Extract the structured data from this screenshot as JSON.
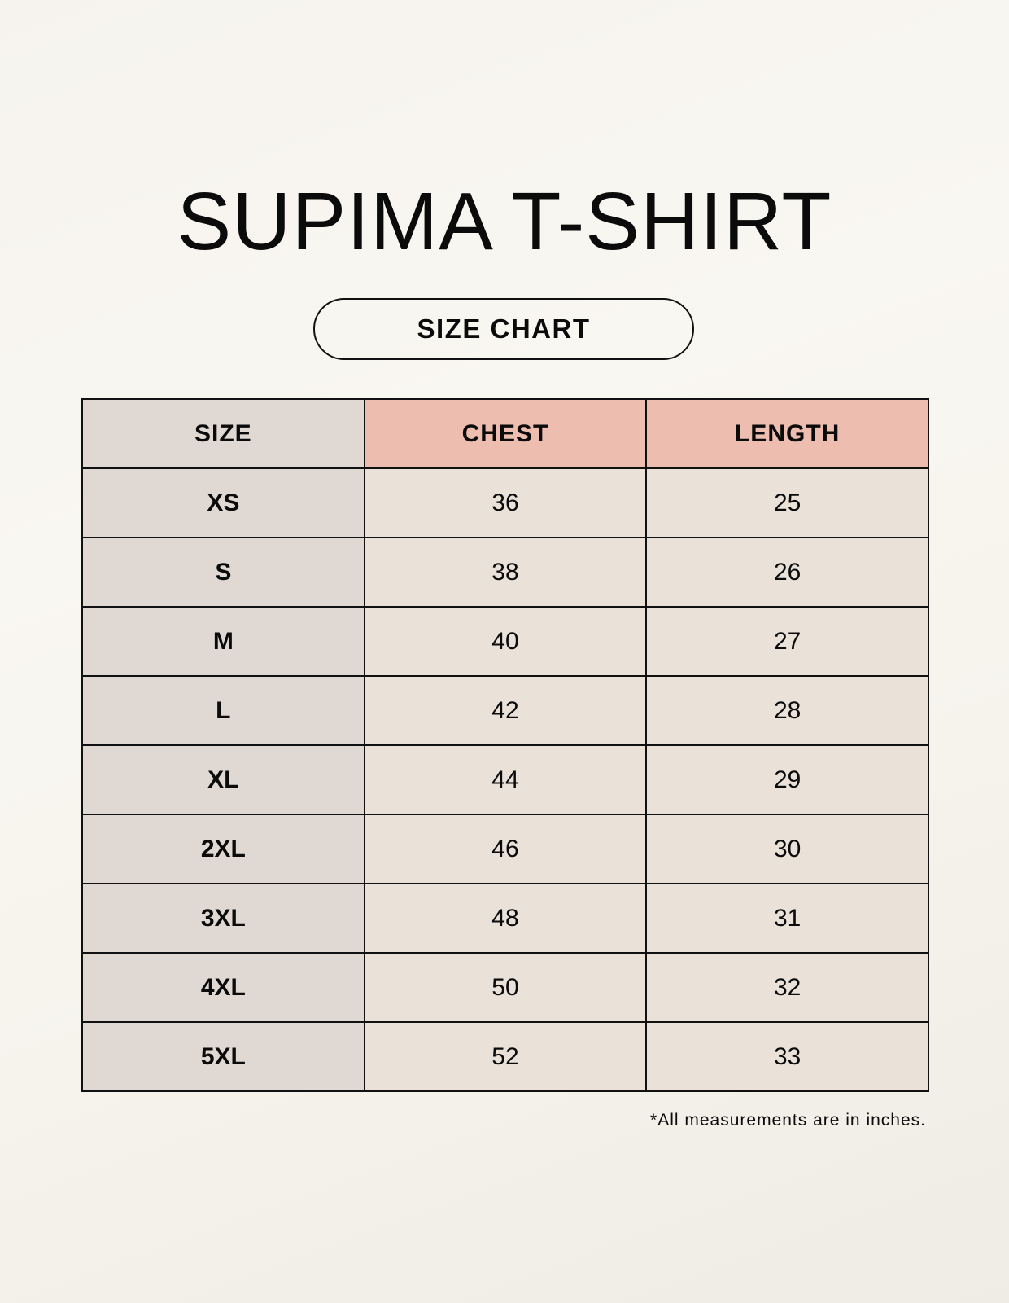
{
  "title": "SUPIMA T-SHIRT",
  "subtitle": "SIZE CHART",
  "colors": {
    "header_size": "#e0d9d3",
    "header_measure": "#edbdb0",
    "cell": "#eae2d8"
  },
  "table": {
    "headers": [
      "SIZE",
      "CHEST",
      "LENGTH"
    ],
    "rows": [
      [
        "XS",
        "36",
        "25"
      ],
      [
        "S",
        "38",
        "26"
      ],
      [
        "M",
        "40",
        "27"
      ],
      [
        "L",
        "42",
        "28"
      ],
      [
        "XL",
        "44",
        "29"
      ],
      [
        "2XL",
        "46",
        "30"
      ],
      [
        "3XL",
        "48",
        "31"
      ],
      [
        "4XL",
        "50",
        "32"
      ],
      [
        "5XL",
        "52",
        "33"
      ]
    ]
  },
  "note": "*All measurements are in inches."
}
